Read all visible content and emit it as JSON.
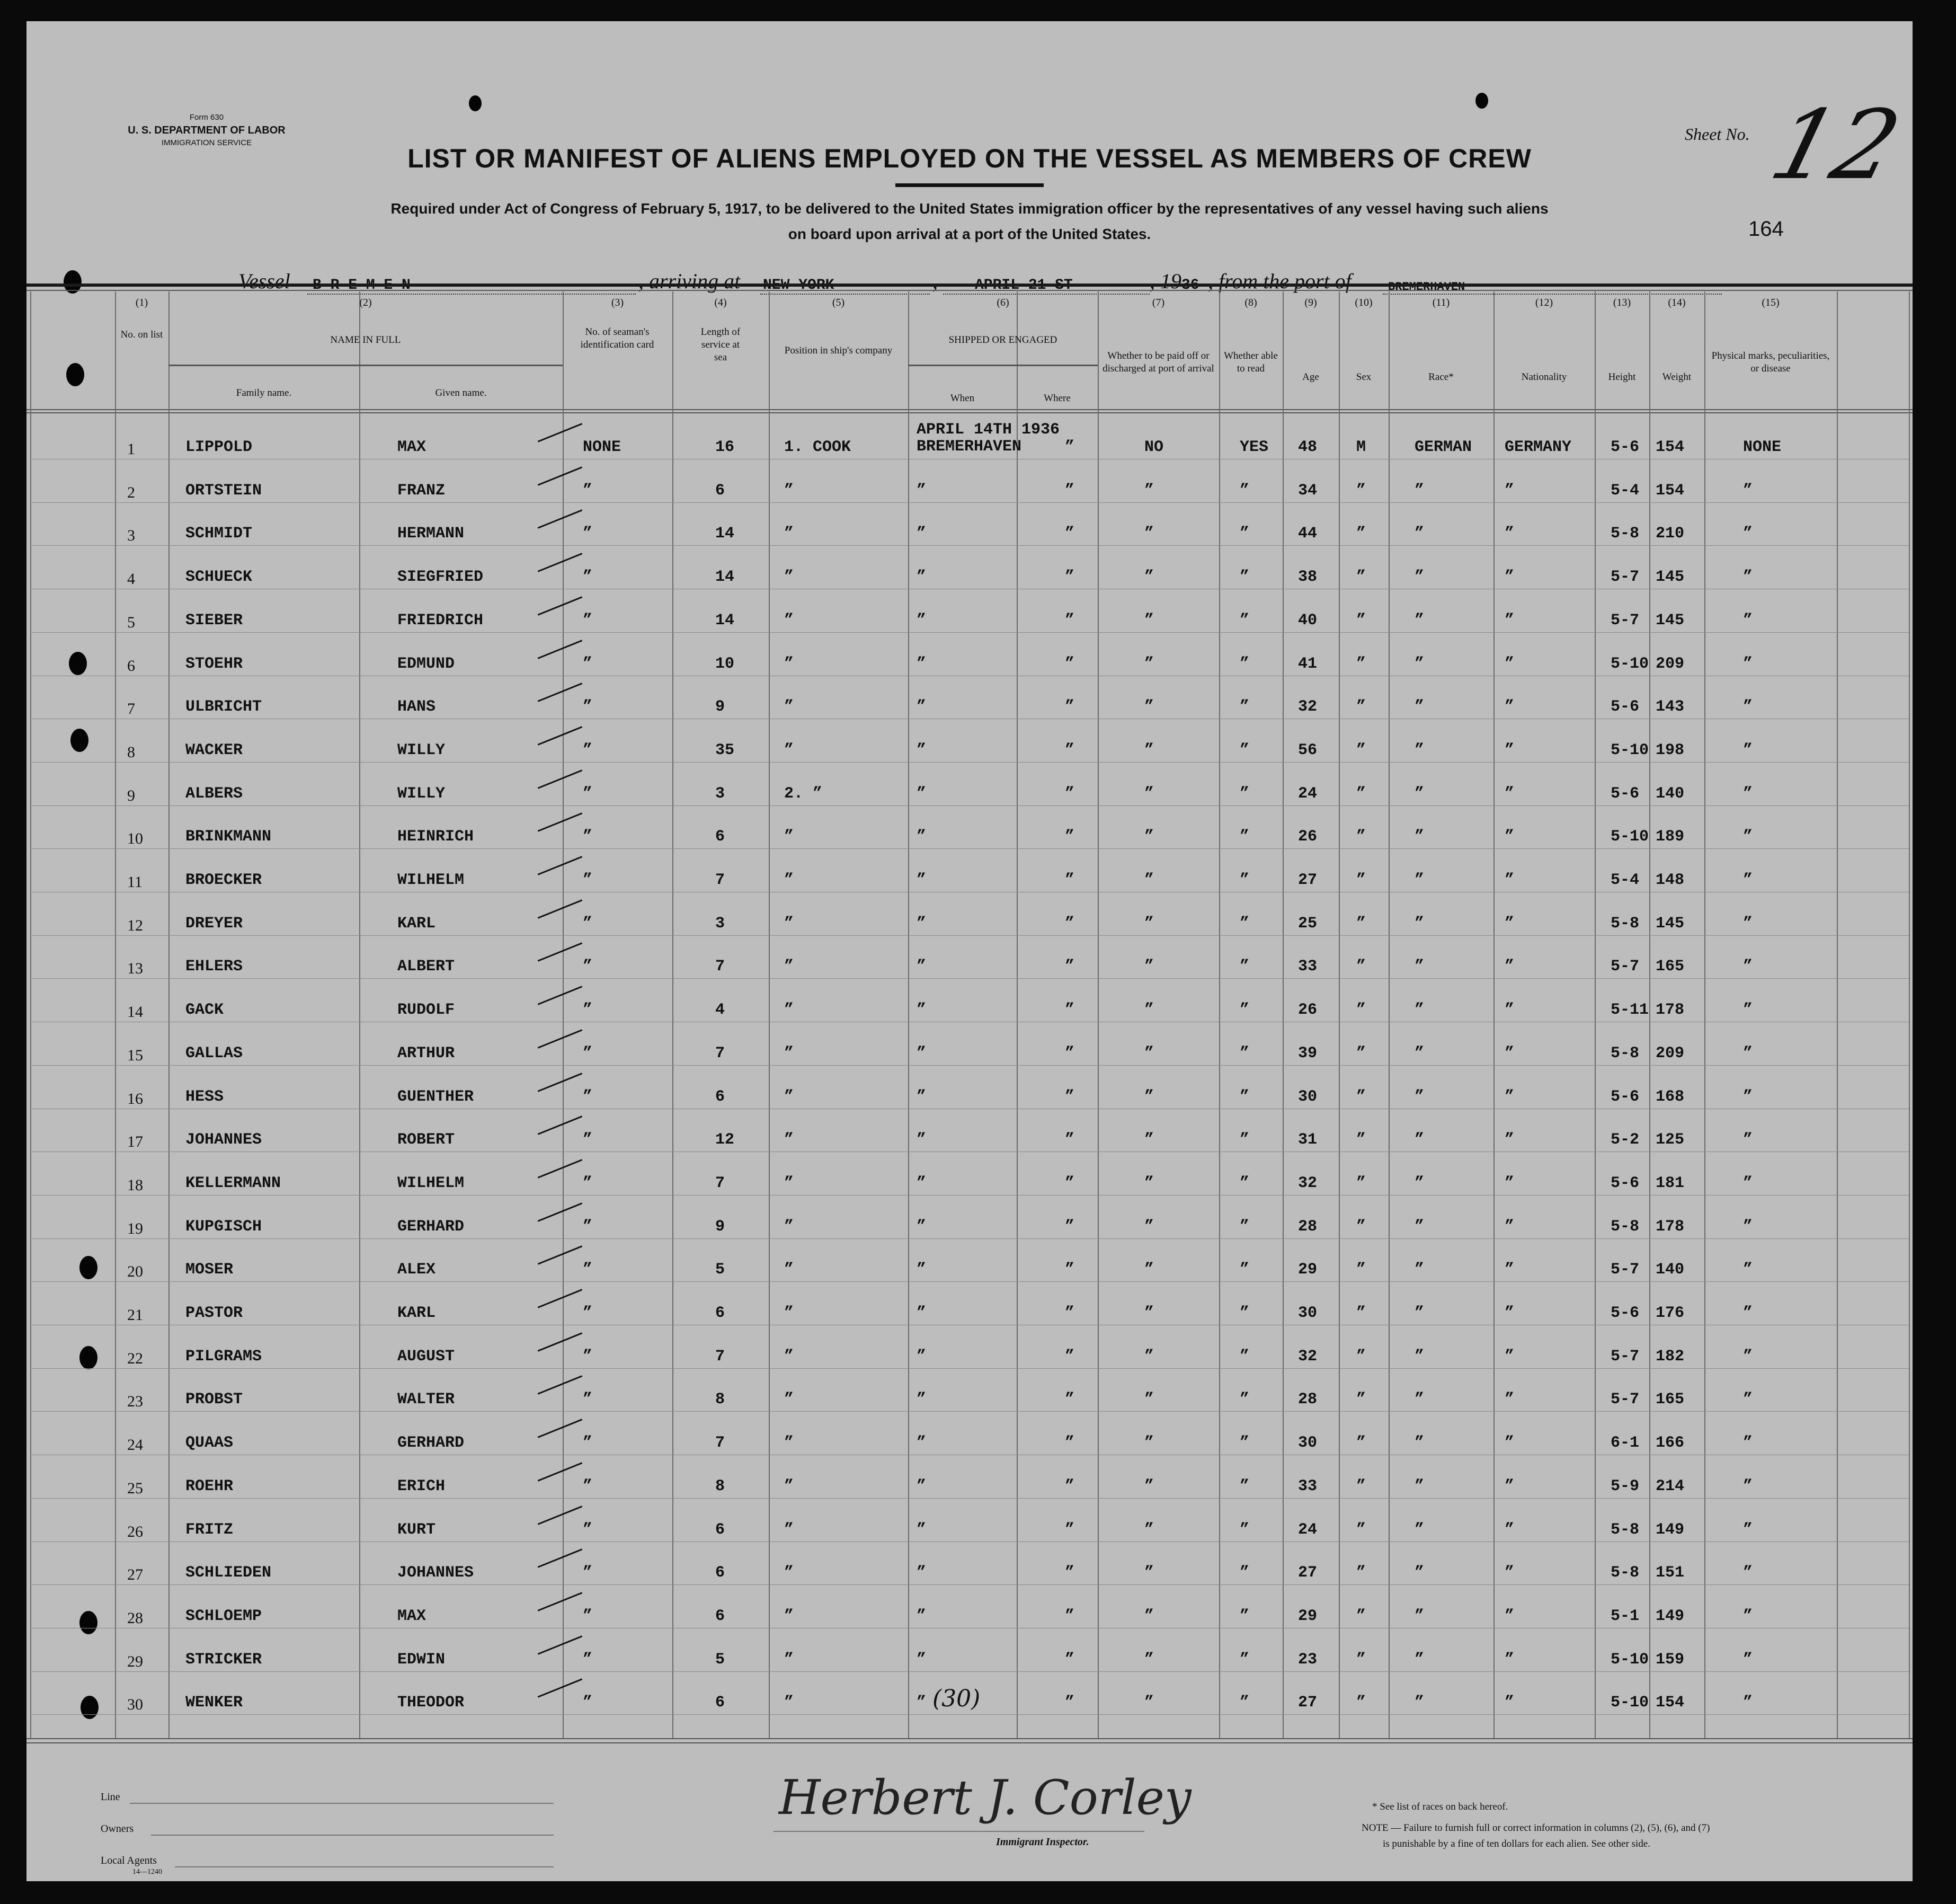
{
  "form": {
    "form_no": "Form 630",
    "department": "U. S. DEPARTMENT OF LABOR",
    "service": "IMMIGRATION SERVICE",
    "title": "LIST OR MANIFEST OF ALIENS EMPLOYED ON THE VESSEL AS MEMBERS OF CREW",
    "subtitle_1": "Required under Act of Congress of February 5, 1917, to be delivered to the United States immigration officer by the representatives of any vessel having such aliens",
    "subtitle_2": "on board upon arrival at a port of the United States.",
    "sheet_label": "Sheet No.",
    "sheet_no": "12",
    "stamp_no": "164"
  },
  "voyage": {
    "vessel_label": "Vessel",
    "vessel": "B R E M E N",
    "arriving_label": ", arriving at",
    "arriving_at": "NEW YORK",
    "date": "APRIL 21 ST",
    "year_prefix": ", 19",
    "year_suffix": "36",
    "from_label": ", from the port of",
    "from_port": "BREMERHAVEN"
  },
  "headers": {
    "c1": {
      "num": "(1)",
      "label": "No. on list"
    },
    "c2": {
      "num": "(2)",
      "label": "NAME IN FULL",
      "family": "Family name.",
      "given": "Given name."
    },
    "c3": {
      "num": "(3)",
      "label": "No. of seaman's identification card"
    },
    "c4": {
      "num": "(4)",
      "label": "Length of service at sea"
    },
    "c5": {
      "num": "(5)",
      "label": "Position in ship's company"
    },
    "c6": {
      "num": "(6)",
      "label": "SHIPPED OR ENGAGED",
      "when": "When",
      "where": "Where"
    },
    "c7": {
      "num": "(7)",
      "label": "Whether to be paid off or discharged at port of arrival"
    },
    "c8": {
      "num": "(8)",
      "label": "Whether able to read"
    },
    "c9": {
      "num": "(9)",
      "label": "Age"
    },
    "c10": {
      "num": "(10)",
      "label": "Sex"
    },
    "c11": {
      "num": "(11)",
      "label": "Race*"
    },
    "c12": {
      "num": "(12)",
      "label": "Nationality"
    },
    "c13": {
      "num": "(13)",
      "label": "Height"
    },
    "c14": {
      "num": "(14)",
      "label": "Weight"
    },
    "c15": {
      "num": "(15)",
      "label": "Physical marks, peculiarities, or disease"
    }
  },
  "table": {
    "rows": [
      [
        "1",
        "LIPPOLD",
        "MAX",
        "NONE",
        "16",
        "1. COOK",
        "APRIL 14TH 1936 BREMERHAVEN",
        "”",
        "NO",
        "YES",
        "48",
        "M",
        "GERMAN",
        "GERMANY",
        "5-6",
        "154",
        "NONE"
      ],
      [
        "2",
        "ORTSTEIN",
        "FRANZ",
        "”",
        "6",
        "”",
        "”",
        "”",
        "”",
        "”",
        "34",
        "”",
        "”",
        "”",
        "5-4",
        "154",
        "”"
      ],
      [
        "3",
        "SCHMIDT",
        "HERMANN",
        "”",
        "14",
        "”",
        "”",
        "”",
        "”",
        "”",
        "44",
        "”",
        "”",
        "”",
        "5-8",
        "210",
        "”"
      ],
      [
        "4",
        "SCHUECK",
        "SIEGFRIED",
        "”",
        "14",
        "”",
        "”",
        "”",
        "”",
        "”",
        "38",
        "”",
        "”",
        "”",
        "5-7",
        "145",
        "”"
      ],
      [
        "5",
        "SIEBER",
        "FRIEDRICH",
        "”",
        "14",
        "”",
        "”",
        "”",
        "”",
        "”",
        "40",
        "”",
        "”",
        "”",
        "5-7",
        "145",
        "”"
      ],
      [
        "6",
        "STOEHR",
        "EDMUND",
        "”",
        "10",
        "”",
        "”",
        "”",
        "”",
        "”",
        "41",
        "”",
        "”",
        "”",
        "5-10",
        "209",
        "”"
      ],
      [
        "7",
        "ULBRICHT",
        "HANS",
        "”",
        "9",
        "”",
        "”",
        "”",
        "”",
        "”",
        "32",
        "”",
        "”",
        "”",
        "5-6",
        "143",
        "”"
      ],
      [
        "8",
        "WACKER",
        "WILLY",
        "”",
        "35",
        "”",
        "”",
        "”",
        "”",
        "”",
        "56",
        "”",
        "”",
        "”",
        "5-10",
        "198",
        "”"
      ],
      [
        "9",
        "ALBERS",
        "WILLY",
        "”",
        "3",
        "2. ”",
        "”",
        "”",
        "”",
        "”",
        "24",
        "”",
        "”",
        "”",
        "5-6",
        "140",
        "”"
      ],
      [
        "10",
        "BRINKMANN",
        "HEINRICH",
        "”",
        "6",
        "”",
        "”",
        "”",
        "”",
        "”",
        "26",
        "”",
        "”",
        "”",
        "5-10",
        "189",
        "”"
      ],
      [
        "11",
        "BROECKER",
        "WILHELM",
        "”",
        "7",
        "”",
        "”",
        "”",
        "”",
        "”",
        "27",
        "”",
        "”",
        "”",
        "5-4",
        "148",
        "”"
      ],
      [
        "12",
        "DREYER",
        "KARL",
        "”",
        "3",
        "”",
        "”",
        "”",
        "”",
        "”",
        "25",
        "”",
        "”",
        "”",
        "5-8",
        "145",
        "”"
      ],
      [
        "13",
        "EHLERS",
        "ALBERT",
        "”",
        "7",
        "”",
        "”",
        "”",
        "”",
        "”",
        "33",
        "”",
        "”",
        "”",
        "5-7",
        "165",
        "”"
      ],
      [
        "14",
        "GACK",
        "RUDOLF",
        "”",
        "4",
        "”",
        "”",
        "”",
        "”",
        "”",
        "26",
        "”",
        "”",
        "”",
        "5-11",
        "178",
        "”"
      ],
      [
        "15",
        "GALLAS",
        "ARTHUR",
        "”",
        "7",
        "”",
        "”",
        "”",
        "”",
        "”",
        "39",
        "”",
        "”",
        "”",
        "5-8",
        "209",
        "”"
      ],
      [
        "16",
        "HESS",
        "GUENTHER",
        "”",
        "6",
        "”",
        "”",
        "”",
        "”",
        "”",
        "30",
        "”",
        "”",
        "”",
        "5-6",
        "168",
        "”"
      ],
      [
        "17",
        "JOHANNES",
        "ROBERT",
        "”",
        "12",
        "”",
        "”",
        "”",
        "”",
        "”",
        "31",
        "”",
        "”",
        "”",
        "5-2",
        "125",
        "”"
      ],
      [
        "18",
        "KELLERMANN",
        "WILHELM",
        "”",
        "7",
        "”",
        "”",
        "”",
        "”",
        "”",
        "32",
        "”",
        "”",
        "”",
        "5-6",
        "181",
        "”"
      ],
      [
        "19",
        "KUPGISCH",
        "GERHARD",
        "”",
        "9",
        "”",
        "”",
        "”",
        "”",
        "”",
        "28",
        "”",
        "”",
        "”",
        "5-8",
        "178",
        "”"
      ],
      [
        "20",
        "MOSER",
        "ALEX",
        "”",
        "5",
        "”",
        "”",
        "”",
        "”",
        "”",
        "29",
        "”",
        "”",
        "”",
        "5-7",
        "140",
        "”"
      ],
      [
        "21",
        "PASTOR",
        "KARL",
        "”",
        "6",
        "”",
        "”",
        "”",
        "”",
        "”",
        "30",
        "”",
        "”",
        "”",
        "5-6",
        "176",
        "”"
      ],
      [
        "22",
        "PILGRAMS",
        "AUGUST",
        "”",
        "7",
        "”",
        "”",
        "”",
        "”",
        "”",
        "32",
        "”",
        "”",
        "”",
        "5-7",
        "182",
        "”"
      ],
      [
        "23",
        "PROBST",
        "WALTER",
        "”",
        "8",
        "”",
        "”",
        "”",
        "”",
        "”",
        "28",
        "”",
        "”",
        "”",
        "5-7",
        "165",
        "”"
      ],
      [
        "24",
        "QUAAS",
        "GERHARD",
        "”",
        "7",
        "”",
        "”",
        "”",
        "”",
        "”",
        "30",
        "”",
        "”",
        "”",
        "6-1",
        "166",
        "”"
      ],
      [
        "25",
        "ROEHR",
        "ERICH",
        "”",
        "8",
        "”",
        "”",
        "”",
        "”",
        "”",
        "33",
        "”",
        "”",
        "”",
        "5-9",
        "214",
        "”"
      ],
      [
        "26",
        "FRITZ",
        "KURT",
        "”",
        "6",
        "”",
        "”",
        "”",
        "”",
        "”",
        "24",
        "”",
        "”",
        "”",
        "5-8",
        "149",
        "”"
      ],
      [
        "27",
        "SCHLIEDEN",
        "JOHANNES",
        "”",
        "6",
        "”",
        "”",
        "”",
        "”",
        "”",
        "27",
        "”",
        "”",
        "”",
        "5-8",
        "151",
        "”"
      ],
      [
        "28",
        "SCHLOEMP",
        "MAX",
        "”",
        "6",
        "”",
        "”",
        "”",
        "”",
        "”",
        "29",
        "”",
        "”",
        "”",
        "5-1",
        "149",
        "”"
      ],
      [
        "29",
        "STRICKER",
        "EDWIN",
        "”",
        "5",
        "”",
        "”",
        "”",
        "”",
        "”",
        "23",
        "”",
        "”",
        "”",
        "5-10",
        "159",
        "”"
      ],
      [
        "30",
        "WENKER",
        "THEODOR",
        "”",
        "6",
        "”",
        "”",
        "”",
        "”",
        "”",
        "27",
        "”",
        "”",
        "”",
        "5-10",
        "154",
        "”"
      ]
    ],
    "total_note": "(30)"
  },
  "footer": {
    "line_label": "Line",
    "owners_label": "Owners",
    "agents_label": "Local Agents",
    "print_code": "14—1240",
    "signature": "Herbert J. Corley",
    "inspector_label": "Immigrant Inspector.",
    "races_note": "* See list of races on back hereof.",
    "note_1": "NOTE — Failure to furnish full or correct information in columns (2), (5), (6), and (7)",
    "note_2": "is punishable by a fine of ten dollars for each alien.  See other side."
  }
}
